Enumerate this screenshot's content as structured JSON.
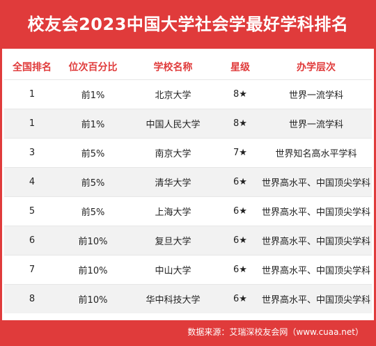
{
  "title": "校友会2023中国大学社会学最好学科排名",
  "columns": [
    "全国排名",
    "位次百分比",
    "学校名称",
    "星级",
    "办学层次"
  ],
  "rows": [
    [
      "1",
      "前1%",
      "北京大学",
      "8★",
      "世界一流学科"
    ],
    [
      "1",
      "前1%",
      "中国人民大学",
      "8★",
      "世界一流学科"
    ],
    [
      "3",
      "前5%",
      "南京大学",
      "7★",
      "世界知名高水平学科"
    ],
    [
      "4",
      "前5%",
      "清华大学",
      "6★",
      "世界高水平、中国顶尖学科"
    ],
    [
      "5",
      "前5%",
      "上海大学",
      "6★",
      "世界高水平、中国顶尖学科"
    ],
    [
      "6",
      "前10%",
      "复旦大学",
      "6★",
      "世界高水平、中国顶尖学科"
    ],
    [
      "7",
      "前10%",
      "中山大学",
      "6★",
      "世界高水平、中国顶尖学科"
    ],
    [
      "8",
      "前10%",
      "华中科技大学",
      "6★",
      "世界高水平、中国顶尖学科"
    ]
  ],
  "footer": "数据来源：艾瑞深校友会网（www.cuaa.net）",
  "colors": {
    "accent": "#e03b3b",
    "stripe": "#f2f2f2"
  }
}
